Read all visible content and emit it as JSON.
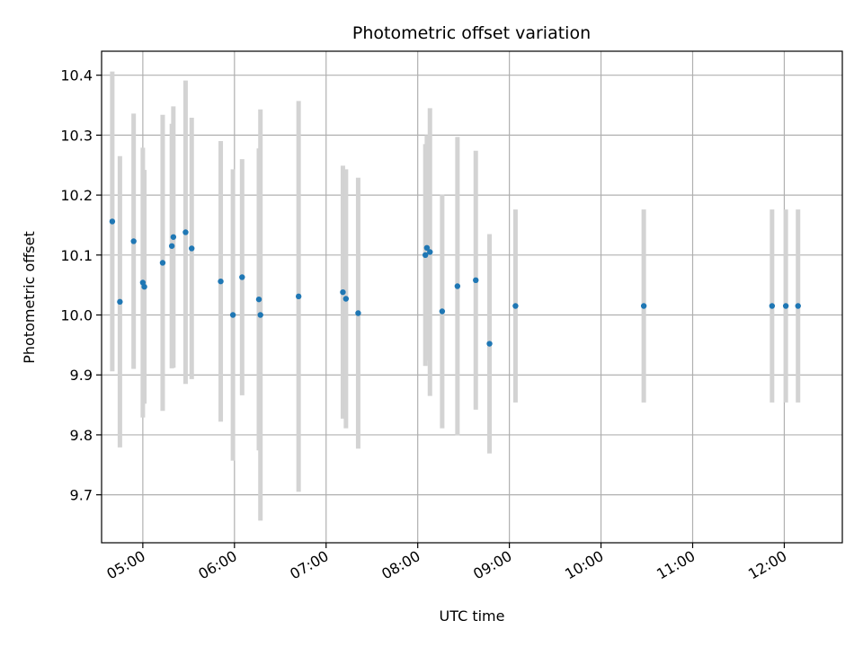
{
  "chart_data": {
    "type": "scatter",
    "title": "Photometric offset variation",
    "xlabel": "UTC time",
    "ylabel": "Photometric offset",
    "x_axis": "time (HH:MM UTC)",
    "xlim": [
      "04:33",
      "12:38"
    ],
    "ylim": [
      9.62,
      10.44
    ],
    "xticks": [
      "05:00",
      "06:00",
      "07:00",
      "08:00",
      "09:00",
      "10:00",
      "11:00",
      "12:00"
    ],
    "yticks": [
      9.7,
      9.8,
      9.9,
      10.0,
      10.1,
      10.2,
      10.3,
      10.4
    ],
    "grid": true,
    "errorbar_color": "#d3d3d3",
    "marker_color": "#1f77b4",
    "points": [
      {
        "x": "04:40",
        "y": 10.156,
        "err": 0.25
      },
      {
        "x": "04:45",
        "y": 10.022,
        "err": 0.243
      },
      {
        "x": "04:54",
        "y": 10.123,
        "err": 0.213
      },
      {
        "x": "05:00",
        "y": 10.054,
        "err": 0.225
      },
      {
        "x": "05:01",
        "y": 10.047,
        "err": 0.195
      },
      {
        "x": "05:13",
        "y": 10.087,
        "err": 0.247
      },
      {
        "x": "05:19",
        "y": 10.115,
        "err": 0.204
      },
      {
        "x": "05:20",
        "y": 10.13,
        "err": 0.218
      },
      {
        "x": "05:28",
        "y": 10.138,
        "err": 0.253
      },
      {
        "x": "05:32",
        "y": 10.111,
        "err": 0.218
      },
      {
        "x": "05:51",
        "y": 10.056,
        "err": 0.234
      },
      {
        "x": "05:59",
        "y": 10.0,
        "err": 0.243
      },
      {
        "x": "06:05",
        "y": 10.063,
        "err": 0.197
      },
      {
        "x": "06:16",
        "y": 10.026,
        "err": 0.252
      },
      {
        "x": "06:17",
        "y": 10.0,
        "err": 0.343
      },
      {
        "x": "06:42",
        "y": 10.031,
        "err": 0.326
      },
      {
        "x": "07:11",
        "y": 10.038,
        "err": 0.211
      },
      {
        "x": "07:13",
        "y": 10.027,
        "err": 0.216
      },
      {
        "x": "07:21",
        "y": 10.003,
        "err": 0.226
      },
      {
        "x": "08:05",
        "y": 10.1,
        "err": 0.185
      },
      {
        "x": "08:06",
        "y": 10.112,
        "err": 0.188
      },
      {
        "x": "08:08",
        "y": 10.105,
        "err": 0.24
      },
      {
        "x": "08:16",
        "y": 10.006,
        "err": 0.195
      },
      {
        "x": "08:26",
        "y": 10.048,
        "err": 0.249
      },
      {
        "x": "08:38",
        "y": 10.058,
        "err": 0.216
      },
      {
        "x": "08:47",
        "y": 9.952,
        "err": 0.183
      },
      {
        "x": "09:04",
        "y": 10.015,
        "err": 0.161
      },
      {
        "x": "10:28",
        "y": 10.015,
        "err": 0.161
      },
      {
        "x": "11:52",
        "y": 10.015,
        "err": 0.161
      },
      {
        "x": "12:01",
        "y": 10.015,
        "err": 0.161
      },
      {
        "x": "12:09",
        "y": 10.015,
        "err": 0.161
      }
    ]
  }
}
